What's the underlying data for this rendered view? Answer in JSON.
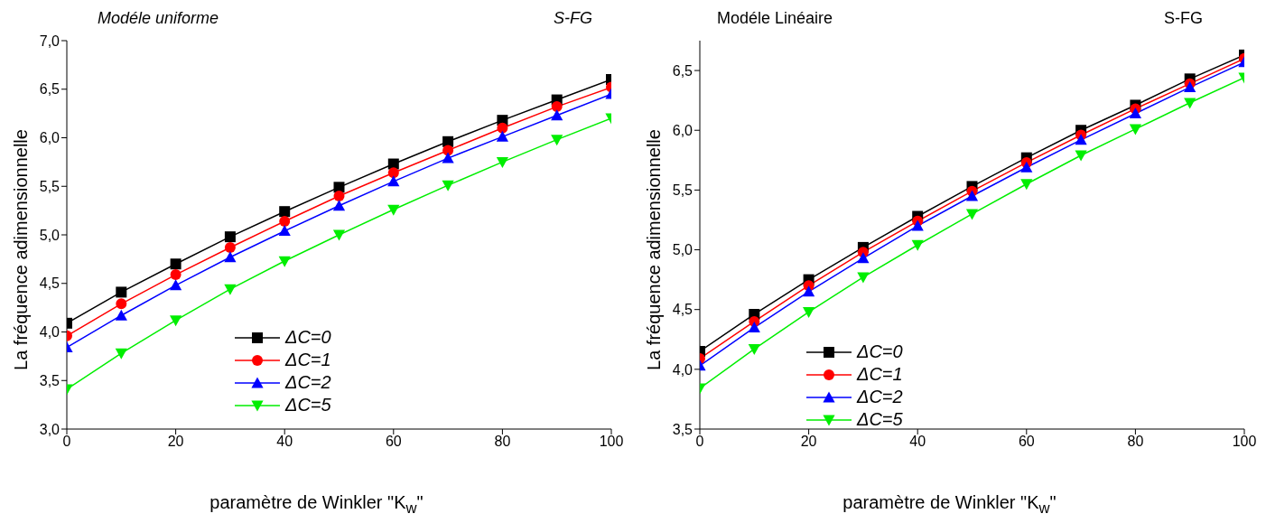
{
  "chart_data": [
    {
      "type": "line",
      "title": "Modéle uniforme",
      "subtitle": "S-FG",
      "xlabel": "paramètre de Winkler \"K$_{w}$\"",
      "ylabel": "La fréquence adimensionnelle",
      "x": [
        0,
        10,
        20,
        30,
        40,
        50,
        60,
        70,
        80,
        90,
        100
      ],
      "xlim": [
        0,
        100
      ],
      "xticks": [
        0,
        20,
        40,
        60,
        80,
        100
      ],
      "ylim": [
        3,
        7
      ],
      "yticks": [
        {
          "value": 3,
          "label": "3,0"
        },
        {
          "value": 3.5,
          "label": "3,5"
        },
        {
          "value": 4,
          "label": "4,0"
        },
        {
          "value": 4.5,
          "label": "4,5"
        },
        {
          "value": 5,
          "label": "5,0"
        },
        {
          "value": 5.5,
          "label": "5,5"
        },
        {
          "value": 6,
          "label": "6,0"
        },
        {
          "value": 6.5,
          "label": "6,5"
        },
        {
          "value": 7,
          "label": "7,0"
        }
      ],
      "legend": "bottom left",
      "grid": false,
      "series": [
        {
          "name": "ΔC=0",
          "color": "#000000",
          "marker": "square",
          "values": [
            4.09,
            4.41,
            4.7,
            4.98,
            5.24,
            5.49,
            5.73,
            5.96,
            6.18,
            6.39,
            6.6
          ]
        },
        {
          "name": "ΔC=1",
          "color": "#ff0000",
          "marker": "circle",
          "values": [
            3.96,
            4.29,
            4.59,
            4.87,
            5.14,
            5.4,
            5.64,
            5.87,
            6.1,
            6.32,
            6.52
          ]
        },
        {
          "name": "ΔC=2",
          "color": "#0000ff",
          "marker": "triangle",
          "values": [
            3.84,
            4.17,
            4.48,
            4.77,
            5.04,
            5.3,
            5.55,
            5.79,
            6.01,
            6.23,
            6.45
          ]
        },
        {
          "name": "ΔC=5",
          "color": "#00ee00",
          "marker": "triangle-down",
          "values": [
            3.41,
            3.78,
            4.12,
            4.44,
            4.73,
            5.0,
            5.26,
            5.51,
            5.75,
            5.98,
            6.2
          ]
        }
      ]
    },
    {
      "type": "line",
      "title": "Modéle Linéaire",
      "subtitle": "S-FG",
      "xlabel": "paramètre de Winkler \"K$_{w}$\"",
      "ylabel": "La fréquence adimensionnelle",
      "x": [
        0,
        10,
        20,
        30,
        40,
        50,
        60,
        70,
        80,
        90,
        100
      ],
      "xlim": [
        0,
        100
      ],
      "xticks": [
        0,
        20,
        40,
        60,
        80,
        100
      ],
      "ylim": [
        3.5,
        6.75
      ],
      "yticks": [
        {
          "value": 3.5,
          "label": "3,5"
        },
        {
          "value": 4,
          "label": "4,0"
        },
        {
          "value": 4.5,
          "label": "4,5"
        },
        {
          "value": 5,
          "label": "5,0"
        },
        {
          "value": 5.5,
          "label": "5,5"
        },
        {
          "value": 6,
          "label": "6,0"
        },
        {
          "value": 6.5,
          "label": "6,5"
        }
      ],
      "legend": "bottom left",
      "grid": false,
      "series": [
        {
          "name": "ΔC=0",
          "color": "#000000",
          "marker": "square",
          "values": [
            4.15,
            4.46,
            4.75,
            5.02,
            5.28,
            5.53,
            5.77,
            6.0,
            6.21,
            6.43,
            6.63
          ]
        },
        {
          "name": "ΔC=1",
          "color": "#ff0000",
          "marker": "circle",
          "values": [
            4.09,
            4.4,
            4.7,
            4.98,
            5.24,
            5.49,
            5.73,
            5.96,
            6.18,
            6.39,
            6.6
          ]
        },
        {
          "name": "ΔC=2",
          "color": "#0000ff",
          "marker": "triangle",
          "values": [
            4.03,
            4.35,
            4.65,
            4.93,
            5.2,
            5.45,
            5.69,
            5.92,
            6.14,
            6.36,
            6.57
          ]
        },
        {
          "name": "ΔC=5",
          "color": "#00ee00",
          "marker": "triangle-down",
          "values": [
            3.84,
            4.17,
            4.48,
            4.77,
            5.04,
            5.3,
            5.55,
            5.79,
            6.01,
            6.23,
            6.44
          ]
        }
      ]
    }
  ]
}
